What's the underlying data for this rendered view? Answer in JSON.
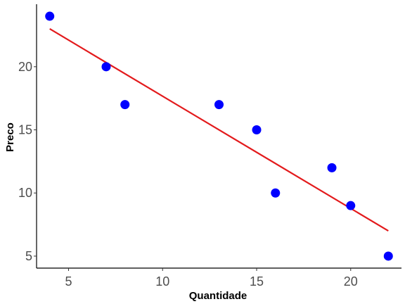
{
  "chart_data": {
    "type": "scatter",
    "xlabel": "Quantidade",
    "ylabel": "Preco",
    "xlim": [
      3.3,
      22.7
    ],
    "ylim": [
      4.05,
      24.95
    ],
    "x_ticks": [
      5,
      10,
      15,
      20
    ],
    "y_ticks": [
      5,
      10,
      15,
      20
    ],
    "grid": false,
    "points": [
      {
        "x": 4,
        "y": 24
      },
      {
        "x": 7,
        "y": 20
      },
      {
        "x": 8,
        "y": 17
      },
      {
        "x": 13,
        "y": 17
      },
      {
        "x": 15,
        "y": 15
      },
      {
        "x": 16,
        "y": 10
      },
      {
        "x": 19,
        "y": 12
      },
      {
        "x": 20,
        "y": 9
      },
      {
        "x": 22,
        "y": 5
      }
    ],
    "trendline": {
      "type": "linear",
      "from": {
        "x": 4,
        "y": 23.0
      },
      "to": {
        "x": 22,
        "y": 7.0
      }
    },
    "colors": {
      "points": "#0000ff",
      "trendline": "#e31a1c",
      "axis": "#000000"
    }
  }
}
